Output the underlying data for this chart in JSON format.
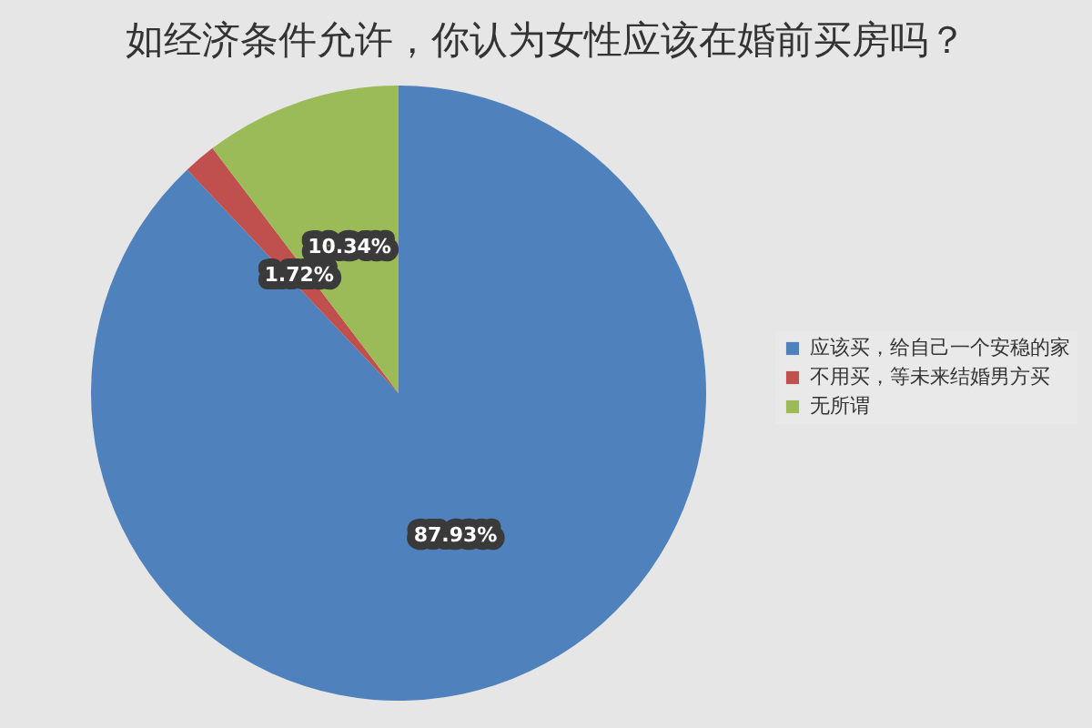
{
  "chart_data": {
    "type": "pie",
    "title": "如经济条件允许，你认为女性应该在婚前买房吗？",
    "categories": [
      "应该买，给自己一个安稳的家",
      "不用买，等未来结婚男方买",
      "无所谓"
    ],
    "values": [
      87.93,
      1.72,
      10.34
    ],
    "colors": [
      "#4f81bd",
      "#c0504d",
      "#9bbb59"
    ],
    "value_labels": [
      "87.93%",
      "1.72%",
      "10.34%"
    ],
    "legend": "right"
  }
}
